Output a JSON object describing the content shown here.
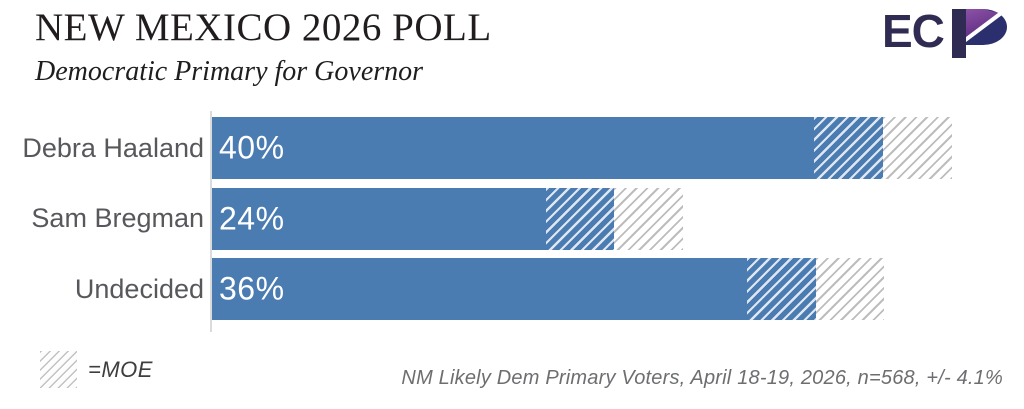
{
  "header": {
    "logo_text": "EC",
    "logo_name": "ECP"
  },
  "chart_data": {
    "type": "bar",
    "orientation": "horizontal",
    "title": "NEW MEXICO 2026 POLL",
    "subtitle": "Democratic Primary for Governor",
    "categories": [
      "Debra Haaland",
      "Sam Bregman",
      "Undecided"
    ],
    "values": [
      40,
      24,
      36
    ],
    "value_labels": [
      "40%",
      "24%",
      "36%"
    ],
    "moe_percent": 4.1,
    "sample_size": 568,
    "xlim": [
      0,
      48
    ],
    "grid": false,
    "bar_color": "#4a7cb2",
    "moe_lower_style": "blue-with-white-diagonal-hatch",
    "moe_upper_style": "white-with-gray-diagonal-hatch",
    "legend_label": "=MOE",
    "legend_position": "bottom-left",
    "note": "NM Likely Dem Primary Voters, April 18-19, 2026, n=568, +/- 4.1%"
  },
  "colors": {
    "bar_blue": "#4a7cb2",
    "hatch_gray_line": "#bdbdbd",
    "axis_line": "#d9dbdd",
    "category_label": "#57585c",
    "title_text": "#211d1e",
    "note_text": "#6d6e71",
    "logo_indigo": "#302b52",
    "logo_navy": "#2b2f6e",
    "logo_purple": "#7b3f99"
  }
}
